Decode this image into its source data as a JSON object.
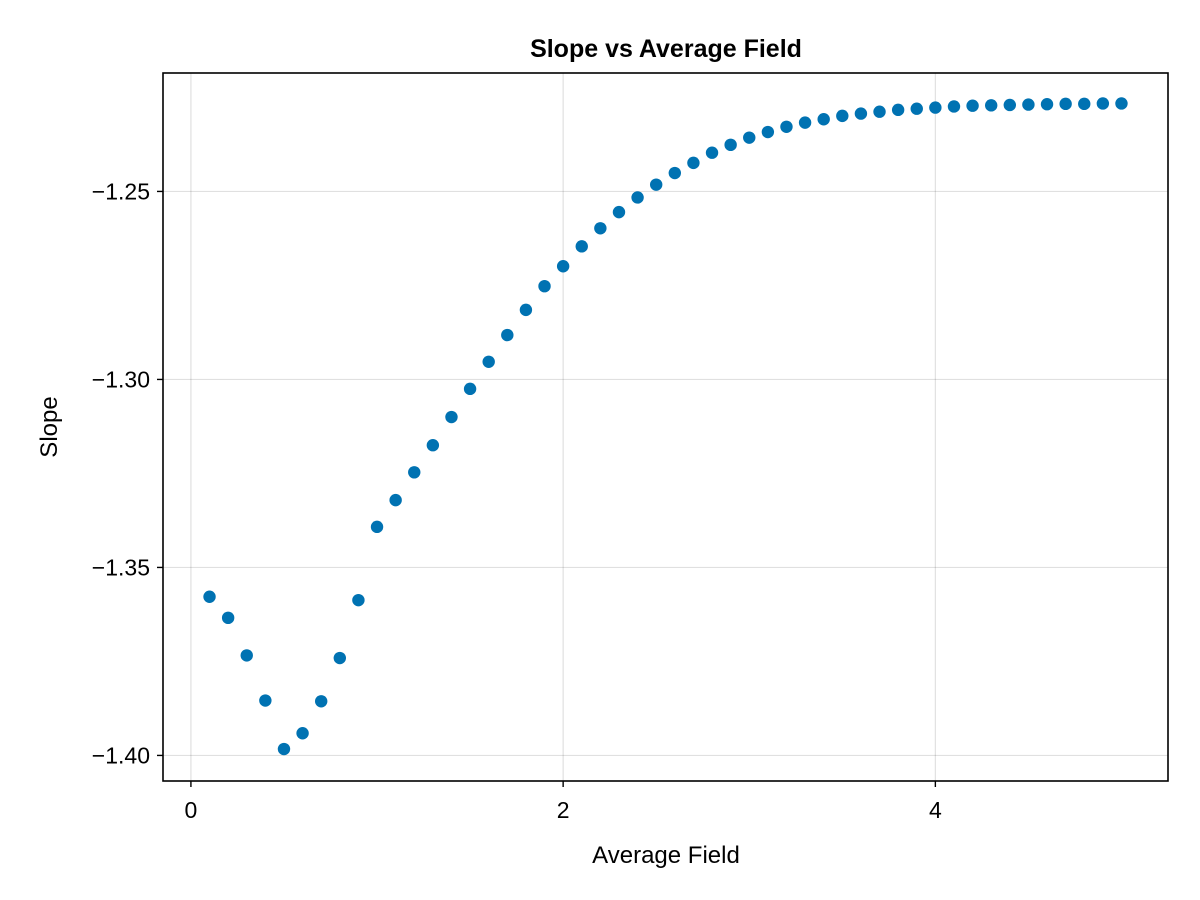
{
  "chart_data": {
    "type": "scatter",
    "title": "Slope vs Average Field",
    "xlabel": "Average Field",
    "ylabel": "Slope",
    "xlim": [
      -0.15,
      5.25
    ],
    "ylim": [
      -1.4068,
      -1.2185
    ],
    "xticks": [
      0,
      2,
      4
    ],
    "xtick_labels": [
      "0",
      "2",
      "4"
    ],
    "yticks": [
      -1.25,
      -1.3,
      -1.35,
      -1.4
    ],
    "ytick_labels": [
      "−1.25",
      "−1.30",
      "−1.35",
      "−1.40"
    ],
    "grid": true,
    "marker_color": "#0072B2",
    "x": [
      0.1,
      0.2,
      0.3,
      0.4,
      0.5,
      0.6,
      0.7,
      0.8,
      0.9,
      1.0,
      1.1,
      1.2,
      1.3,
      1.4,
      1.5,
      1.6,
      1.7,
      1.8,
      1.9,
      2.0,
      2.1,
      2.2,
      2.3,
      2.4,
      2.5,
      2.6,
      2.7,
      2.8,
      2.9,
      3.0,
      3.1,
      3.2,
      3.3,
      3.4,
      3.5,
      3.6,
      3.7,
      3.8,
      3.9,
      4.0,
      4.1,
      4.2,
      4.3,
      4.4,
      4.5,
      4.6,
      4.7,
      4.8,
      4.9,
      5.0
    ],
    "y": [
      -1.3578,
      -1.3634,
      -1.3734,
      -1.3854,
      -1.3983,
      -1.3941,
      -1.3856,
      -1.3741,
      -1.3587,
      -1.3392,
      -1.3321,
      -1.3247,
      -1.3175,
      -1.31,
      -1.3025,
      -1.2953,
      -1.2882,
      -1.2815,
      -1.2752,
      -1.2699,
      -1.2646,
      -1.2598,
      -1.2555,
      -1.2516,
      -1.2482,
      -1.2451,
      -1.2424,
      -1.2397,
      -1.2376,
      -1.2357,
      -1.2342,
      -1.2328,
      -1.2317,
      -1.2308,
      -1.2299,
      -1.2293,
      -1.2288,
      -1.2283,
      -1.228,
      -1.2277,
      -1.2274,
      -1.2272,
      -1.2271,
      -1.227,
      -1.2269,
      -1.2268,
      -1.2267,
      -1.2267,
      -1.2266,
      -1.2266
    ]
  }
}
